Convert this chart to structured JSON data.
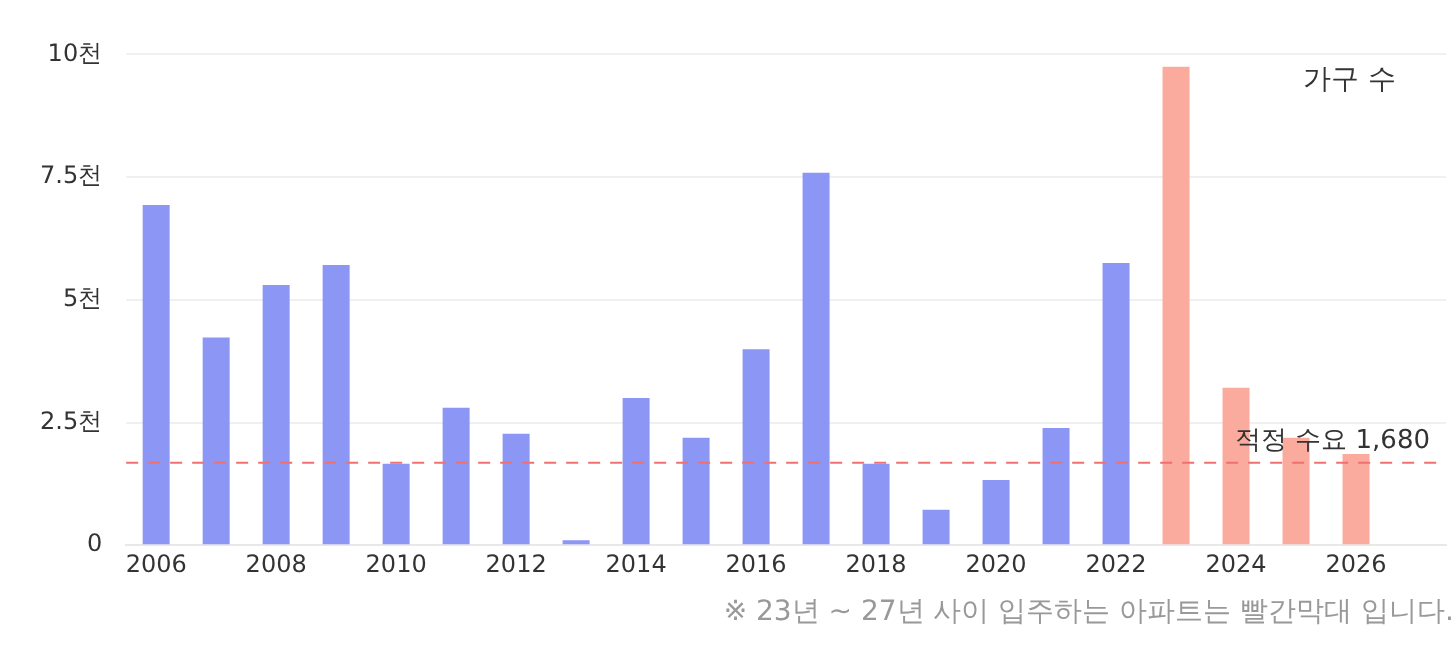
{
  "chart_data": {
    "type": "bar",
    "categories": [
      "2006",
      null,
      "2008",
      null,
      "2010",
      null,
      "2012",
      null,
      "2014",
      null,
      "2016",
      null,
      "2018",
      null,
      "2020",
      null,
      "2022",
      null,
      "2024",
      null,
      "2026",
      null
    ],
    "series": [
      {
        "colors": [
          "#8c96f5",
          "#8c96f5",
          "#8c96f5",
          "#8c96f5",
          "#8c96f5",
          "#8c96f5",
          "#8c96f5",
          "#8c96f5",
          "#8c96f5",
          "#8c96f5",
          "#8c96f5",
          "#8c96f5",
          "#8c96f5",
          "#8c96f5",
          "#8c96f5",
          "#8c96f5",
          "#8c96f5",
          "#fbab9d",
          "#fbab9d",
          "#fbab9d",
          "#fbab9d",
          null
        ],
        "values": [
          6.93,
          4.23,
          5.3,
          5.71,
          1.66,
          2.8,
          2.27,
          0.1,
          3.0,
          2.19,
          3.99,
          7.59,
          1.66,
          0.72,
          1.33,
          2.39,
          5.75,
          9.75,
          3.21,
          2.19,
          1.86,
          null
        ]
      }
    ],
    "ylim": [
      0,
      10
    ],
    "yticks": [
      0,
      {
        "value": 2.5,
        "label": "2.5천"
      },
      {
        "value": 5,
        "label": "5천"
      },
      {
        "value": 7.5,
        "label": "7.5천"
      },
      {
        "value": 10,
        "label": "10천"
      }
    ],
    "grid": "y",
    "legend": false,
    "ref_lines": [
      {
        "axis": "y",
        "value": 1.68,
        "label": "적정 수요 1,680",
        "color": "#f07070",
        "line_style": "dashed"
      }
    ],
    "annotations": [
      "가구 수",
      "※ 23년 ~ 27년 사이 입주하는 아파트는 빨간막대 입니다."
    ]
  }
}
